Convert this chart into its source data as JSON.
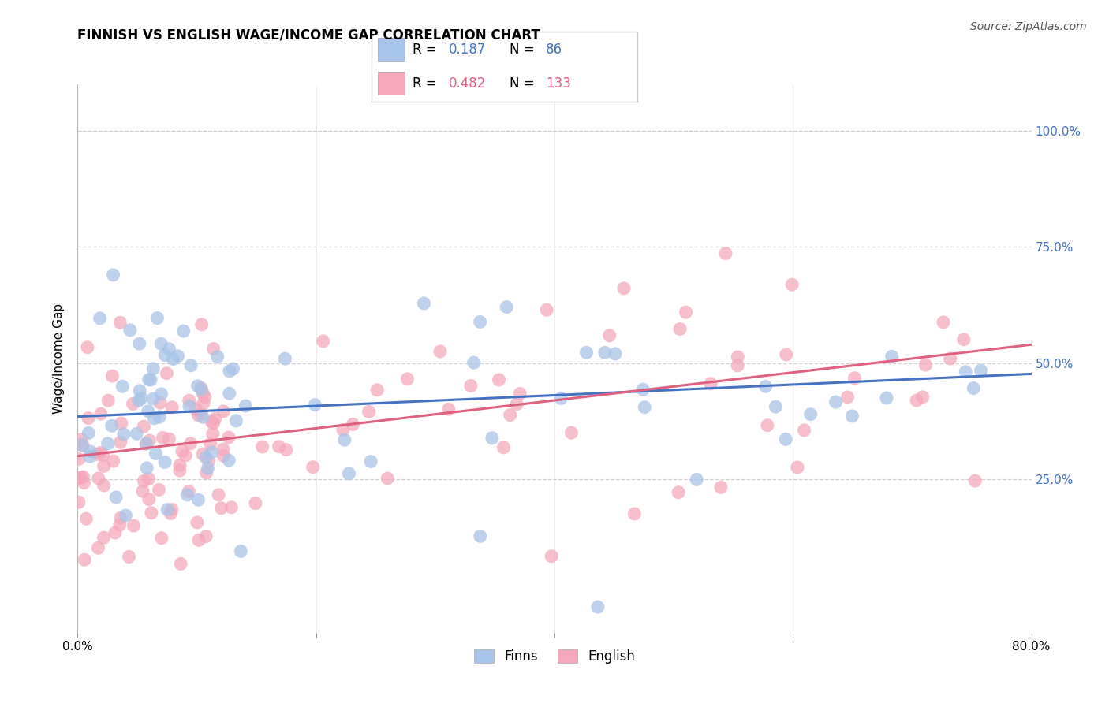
{
  "title": "FINNISH VS ENGLISH WAGE/INCOME GAP CORRELATION CHART",
  "source": "Source: ZipAtlas.com",
  "ylabel": "Wage/Income Gap",
  "ytick_labels": [
    "25.0%",
    "50.0%",
    "75.0%",
    "100.0%"
  ],
  "ytick_values": [
    0.25,
    0.5,
    0.75,
    1.0
  ],
  "xlim": [
    0.0,
    0.8
  ],
  "ylim": [
    -0.08,
    1.1
  ],
  "finns_color": "#a8c4e8",
  "english_color": "#f5a8bc",
  "finns_line_color": "#4472c4",
  "english_line_color": "#e06080",
  "tick_color": "#4472c4",
  "finns_R": 0.187,
  "finns_N": 86,
  "english_R": 0.482,
  "english_N": 133,
  "finns_intercept": 0.385,
  "finns_slope": 0.115,
  "english_intercept": 0.3,
  "english_slope": 0.3,
  "background_color": "#ffffff",
  "grid_color": "#cccccc",
  "title_fontsize": 12,
  "axis_label_fontsize": 11,
  "tick_fontsize": 11,
  "source_fontsize": 10,
  "legend_fontsize": 12
}
